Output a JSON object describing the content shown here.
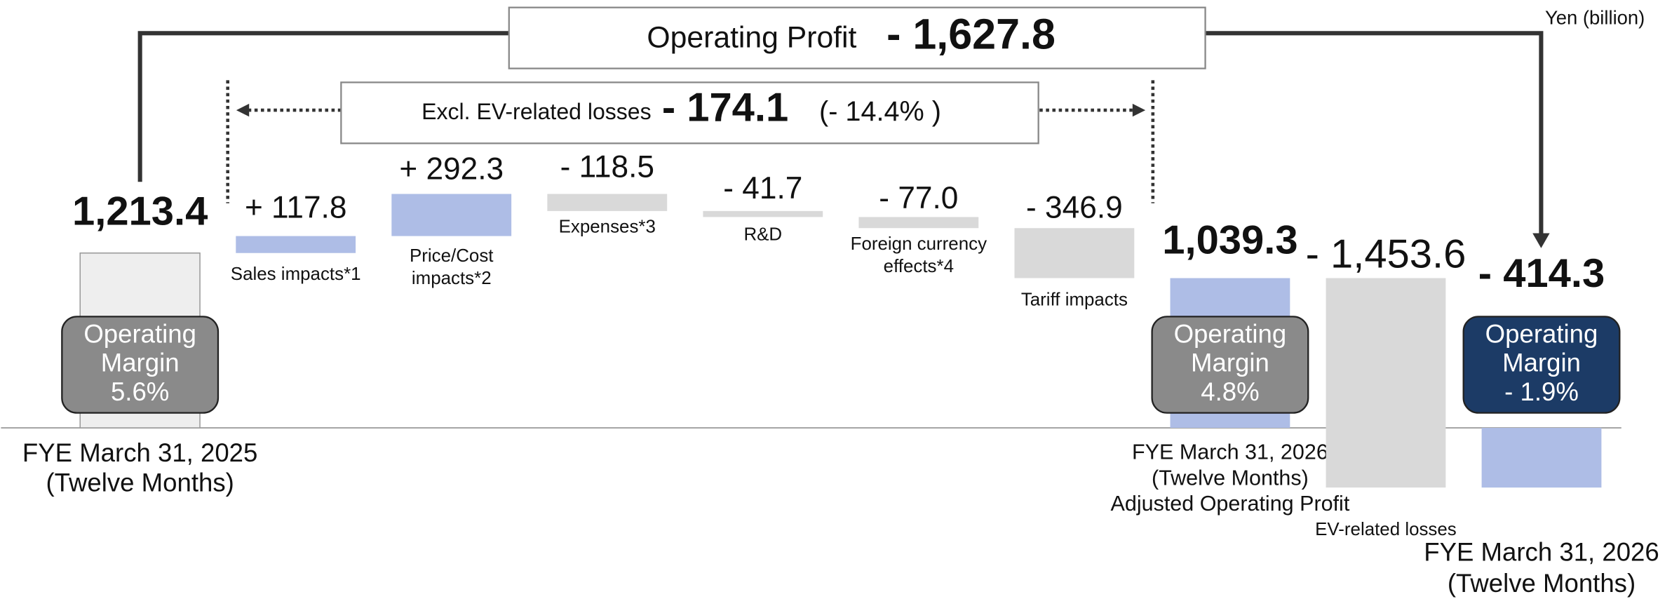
{
  "chart_data": {
    "type": "waterfall",
    "unit_label": "Yen (billion)",
    "categories": [
      [
        "FYE March 31, 2025",
        "(Twelve Months)"
      ],
      [
        "Sales impacts*1"
      ],
      [
        "Price/Cost",
        "impacts*2"
      ],
      [
        "Expenses*3"
      ],
      [
        "R&D"
      ],
      [
        "Foreign currency",
        "effects*4"
      ],
      [
        "Tariff impacts"
      ],
      [
        "FYE March 31, 2026",
        "(Twelve Months)",
        "Adjusted Operating Profit"
      ],
      [
        "EV-related losses"
      ],
      [
        "FYE March 31, 2026",
        "(Twelve Months)"
      ]
    ],
    "measures": [
      "absolute",
      "relative",
      "relative",
      "relative",
      "relative",
      "relative",
      "relative",
      "total",
      "relative",
      "total"
    ],
    "values": [
      1213.4,
      117.8,
      292.3,
      -118.5,
      -41.7,
      -77.0,
      -346.9,
      1039.3,
      -1453.6,
      -414.3
    ],
    "value_labels": [
      "1,213.4",
      "+ 117.8",
      "+ 292.3",
      "- 118.5",
      "- 41.7",
      "- 77.0",
      "- 346.9",
      "1,039.3",
      "- 1,453.6",
      "- 414.3"
    ],
    "colors": [
      "#eeeeee",
      "#aebde6",
      "#aebde6",
      "#d9d9d9",
      "#d9d9d9",
      "#d9d9d9",
      "#d9d9d9",
      "#aebde6",
      "#d9d9d9",
      "#aebde6"
    ],
    "margins": [
      {
        "label": [
          "Operating",
          "Margin"
        ],
        "value": 5.6,
        "value_label": "5.6%",
        "color": "#8a8a8a"
      },
      null,
      null,
      null,
      null,
      null,
      null,
      {
        "label": [
          "Operating",
          "Margin"
        ],
        "value": 4.8,
        "value_label": "4.8%",
        "color": "#8a8a8a"
      },
      null,
      {
        "label": [
          "Operating",
          "Margin"
        ],
        "value": -1.9,
        "value_label": "- 1.9%",
        "color": "#1c3b66"
      }
    ],
    "operating_profit": {
      "label": "Operating Profit",
      "value": -1627.8,
      "value_label": "- 1,627.8"
    },
    "excl_ev": {
      "label": "Excl. EV-related losses",
      "value": -174.1,
      "value_label": "- 174.1",
      "ratio": -14.4,
      "ratio_label": "(- 14.4%  )"
    }
  }
}
